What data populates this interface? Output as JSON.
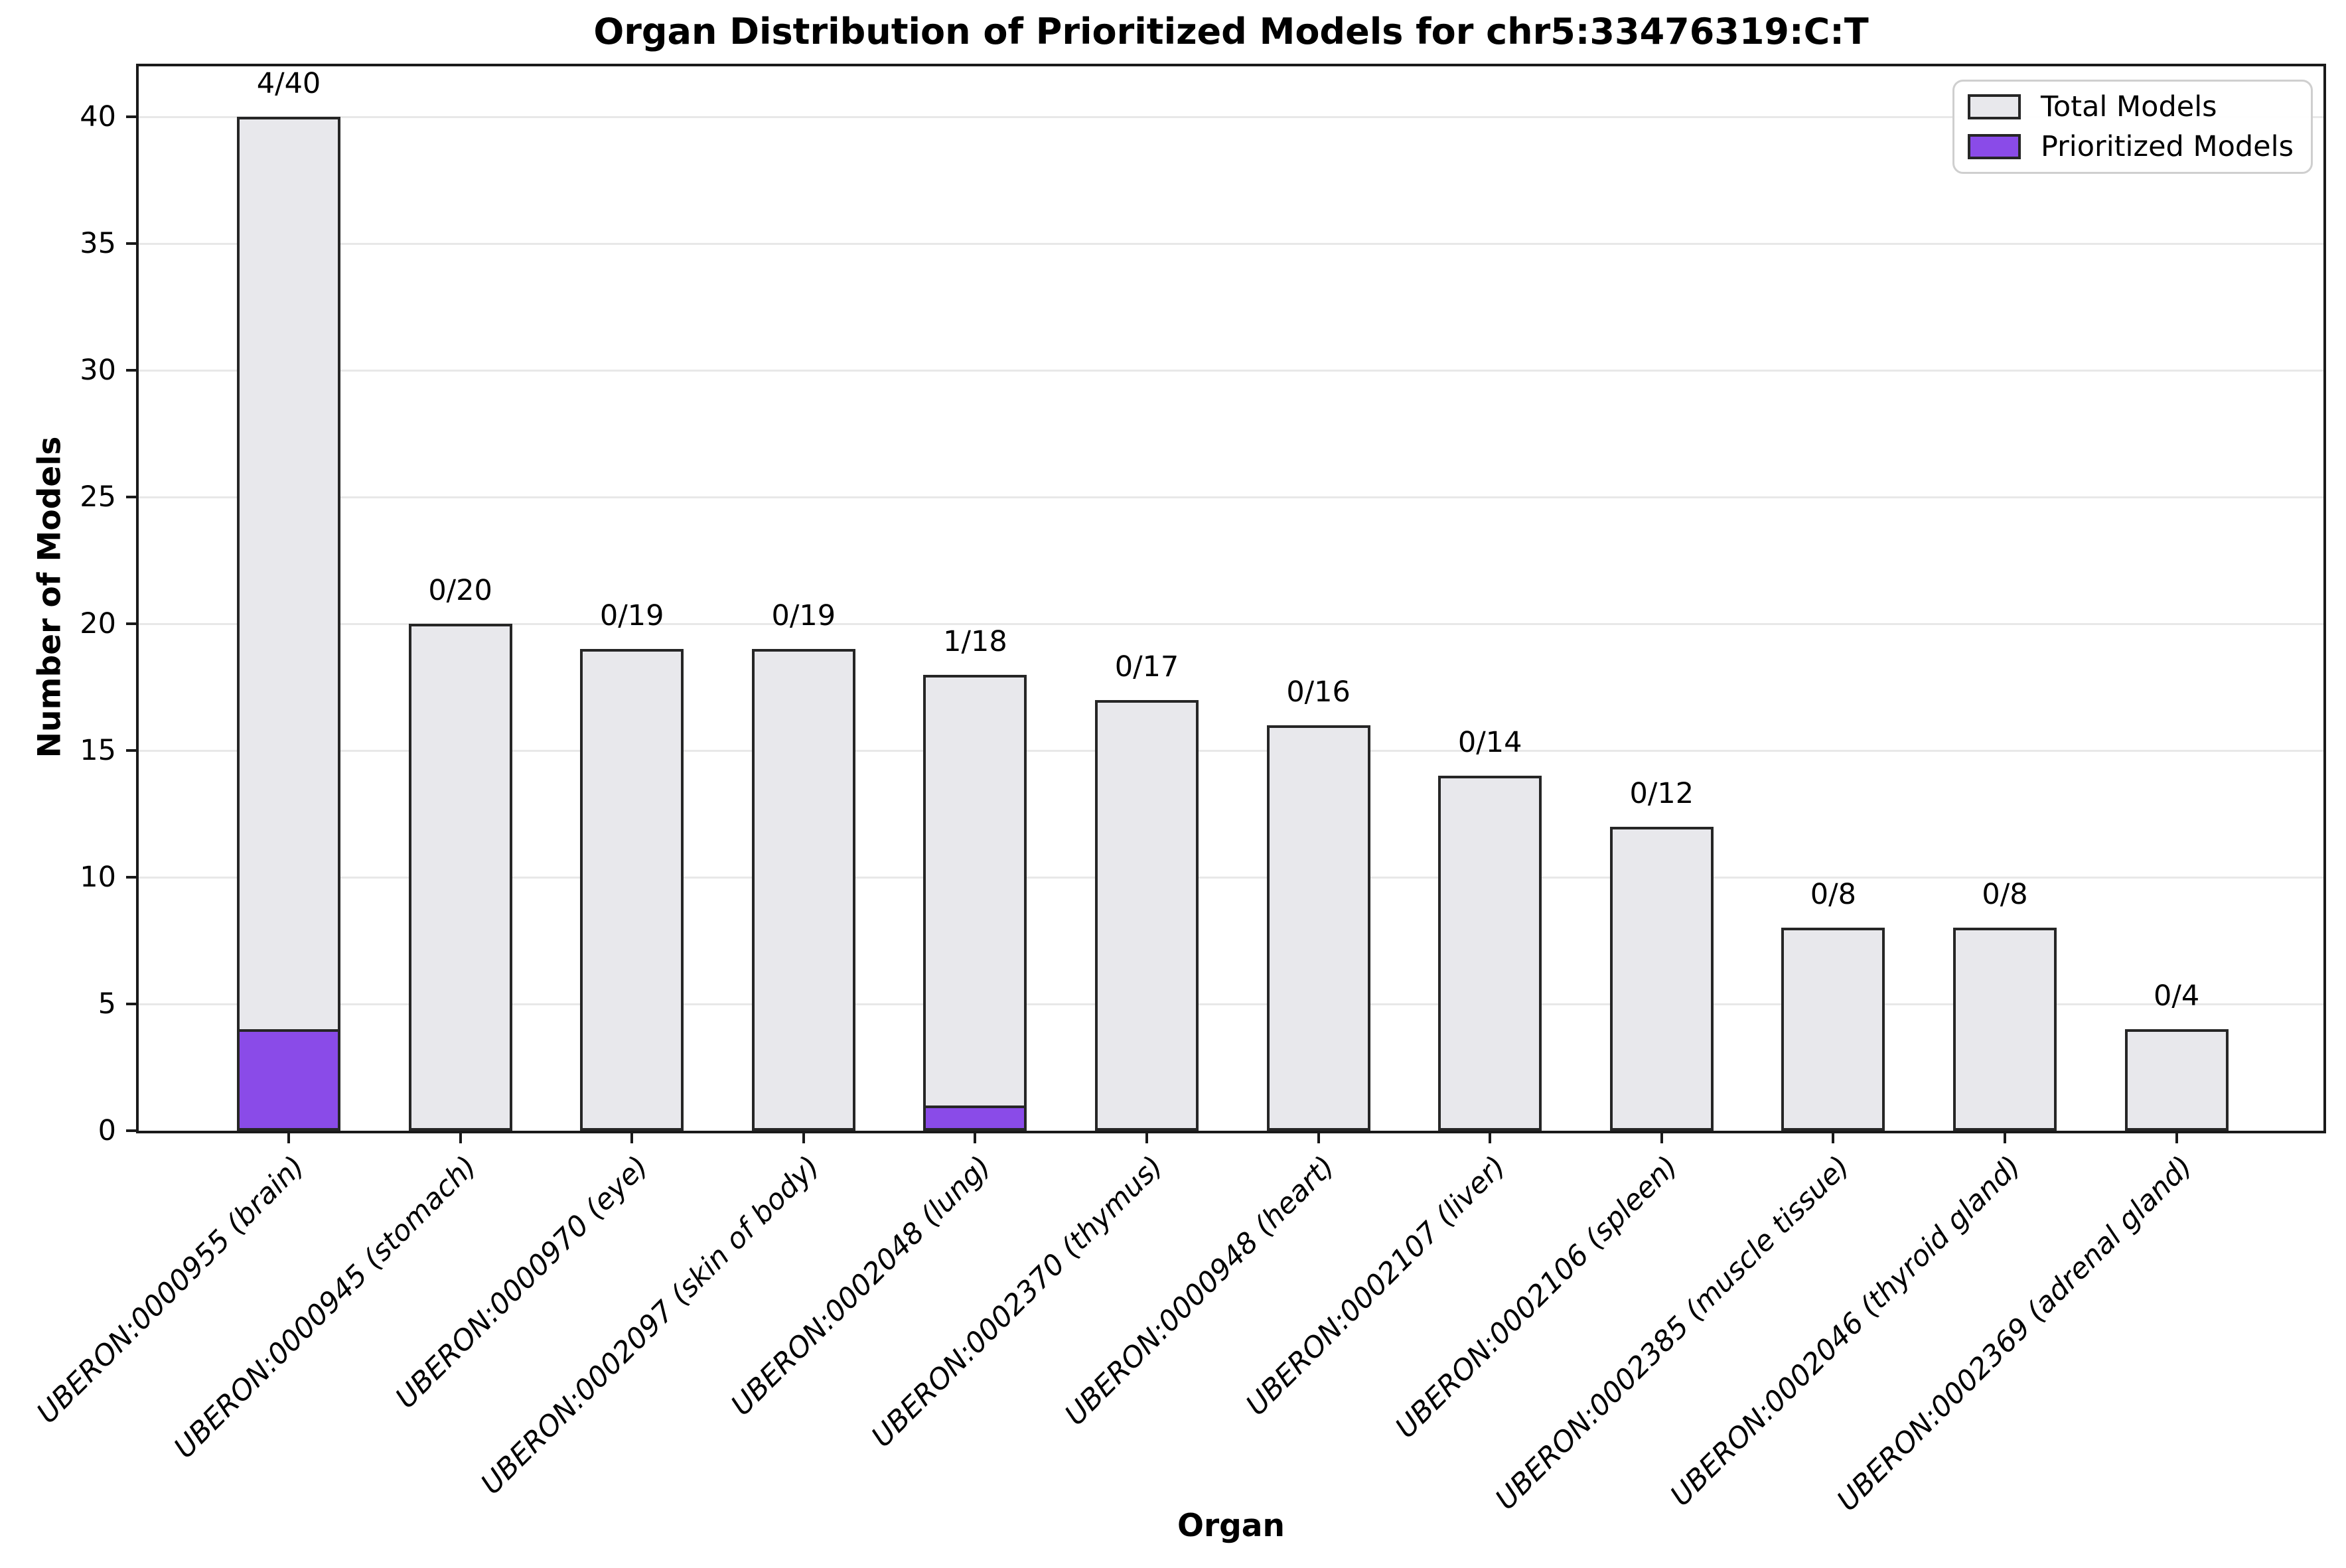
{
  "chart_data": {
    "type": "bar",
    "title": "Organ Distribution of Prioritized Models for chr5:33476319:C:T",
    "xlabel": "Organ",
    "ylabel": "Number of Models",
    "ylim": [
      0,
      42
    ],
    "yticks": [
      0,
      5,
      10,
      15,
      20,
      25,
      30,
      35,
      40
    ],
    "grid": "horizontal",
    "legend_position": "top-right",
    "categories": [
      "UBERON:0000955 (brain)",
      "UBERON:0000945 (stomach)",
      "UBERON:0000970 (eye)",
      "UBERON:0002097 (skin of body)",
      "UBERON:0002048 (lung)",
      "UBERON:0002370 (thymus)",
      "UBERON:0000948 (heart)",
      "UBERON:0002107 (liver)",
      "UBERON:0002106 (spleen)",
      "UBERON:0002385 (muscle tissue)",
      "UBERON:0002046 (thyroid gland)",
      "UBERON:0002369 (adrenal gland)"
    ],
    "series": [
      {
        "name": "Total Models",
        "color": "#e8e8ec",
        "values": [
          40,
          20,
          19,
          19,
          18,
          17,
          16,
          14,
          12,
          8,
          8,
          4
        ]
      },
      {
        "name": "Prioritized Models",
        "color": "#8a4be8",
        "values": [
          4,
          0,
          0,
          0,
          1,
          0,
          0,
          0,
          0,
          0,
          0,
          0
        ]
      }
    ],
    "annotations": [
      "4/40",
      "0/20",
      "0/19",
      "0/19",
      "1/18",
      "0/17",
      "0/16",
      "0/14",
      "0/12",
      "0/8",
      "0/8",
      "0/4"
    ],
    "bar_edge_color": "#262626",
    "grid_color": "#e8e8e8"
  }
}
